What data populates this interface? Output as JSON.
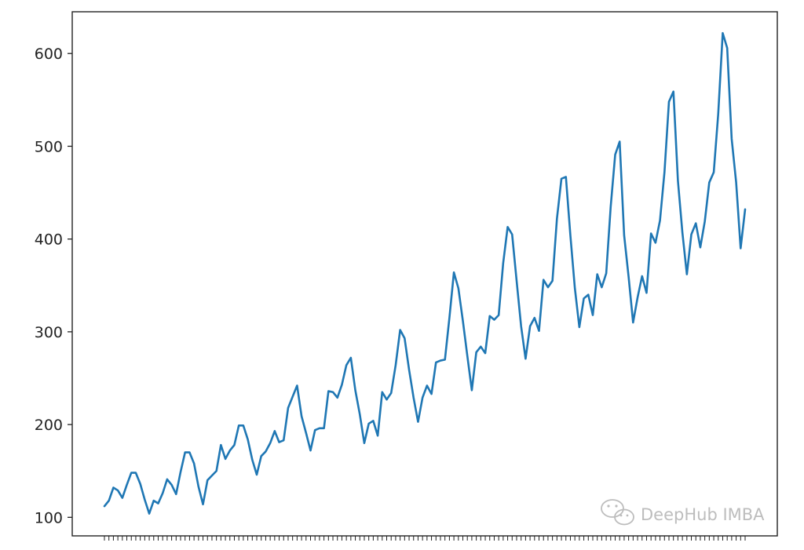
{
  "chart_data": {
    "type": "line",
    "title": "",
    "xlabel": "",
    "ylabel": "",
    "ylim": [
      80,
      645
    ],
    "yticks": [
      100,
      200,
      300,
      400,
      500,
      600
    ],
    "x_tick_labels_visible": false,
    "grid": false,
    "legend": "none",
    "series": [
      {
        "color": "#1f77b4",
        "values": [
          112,
          118,
          132,
          129,
          121,
          135,
          148,
          148,
          136,
          119,
          104,
          118,
          115,
          126,
          141,
          135,
          125,
          149,
          170,
          170,
          158,
          133,
          114,
          140,
          145,
          150,
          178,
          163,
          172,
          178,
          199,
          199,
          184,
          162,
          146,
          166,
          171,
          180,
          193,
          181,
          183,
          218,
          230,
          242,
          209,
          191,
          172,
          194,
          196,
          196,
          236,
          235,
          229,
          243,
          264,
          272,
          237,
          211,
          180,
          201,
          204,
          188,
          235,
          227,
          234,
          264,
          302,
          293,
          259,
          229,
          203,
          229,
          242,
          233,
          267,
          269,
          270,
          315,
          364,
          347,
          312,
          274,
          237,
          278,
          284,
          277,
          317,
          313,
          318,
          374,
          413,
          405,
          355,
          306,
          271,
          306,
          315,
          301,
          356,
          348,
          355,
          422,
          465,
          467,
          404,
          347,
          305,
          336,
          340,
          318,
          362,
          348,
          363,
          435,
          491,
          505,
          404,
          359,
          310,
          337,
          360,
          342,
          406,
          396,
          420,
          472,
          548,
          559,
          463,
          407,
          362,
          405,
          417,
          391,
          419,
          461,
          472,
          535,
          622,
          606,
          508,
          461,
          390,
          432
        ]
      }
    ]
  },
  "watermark": {
    "icon": "wechat-icon",
    "text": "DeepHub IMBA"
  }
}
